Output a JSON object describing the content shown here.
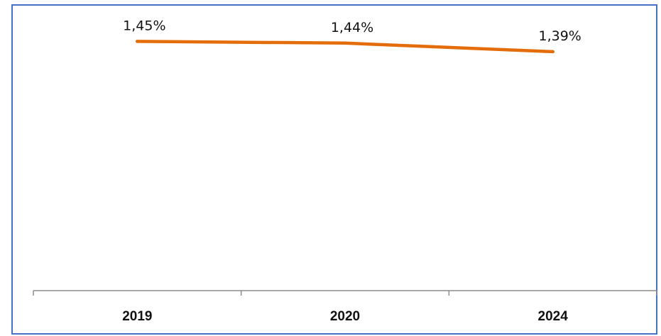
{
  "chart_data": {
    "type": "line",
    "categories": [
      "2019",
      "2020",
      "2024"
    ],
    "series": [
      {
        "values": [
          1.45,
          1.44,
          1.39
        ],
        "data_labels": [
          "1,45%",
          "1,44%",
          "1,39%"
        ],
        "color": "#e46c0a"
      }
    ],
    "title": "",
    "xlabel": "",
    "ylabel": "",
    "ylim": [
      0,
      1.6
    ],
    "grid": false,
    "legend": "none",
    "frame_color": "#4472c4",
    "axis_color": "#8c8c8c"
  }
}
